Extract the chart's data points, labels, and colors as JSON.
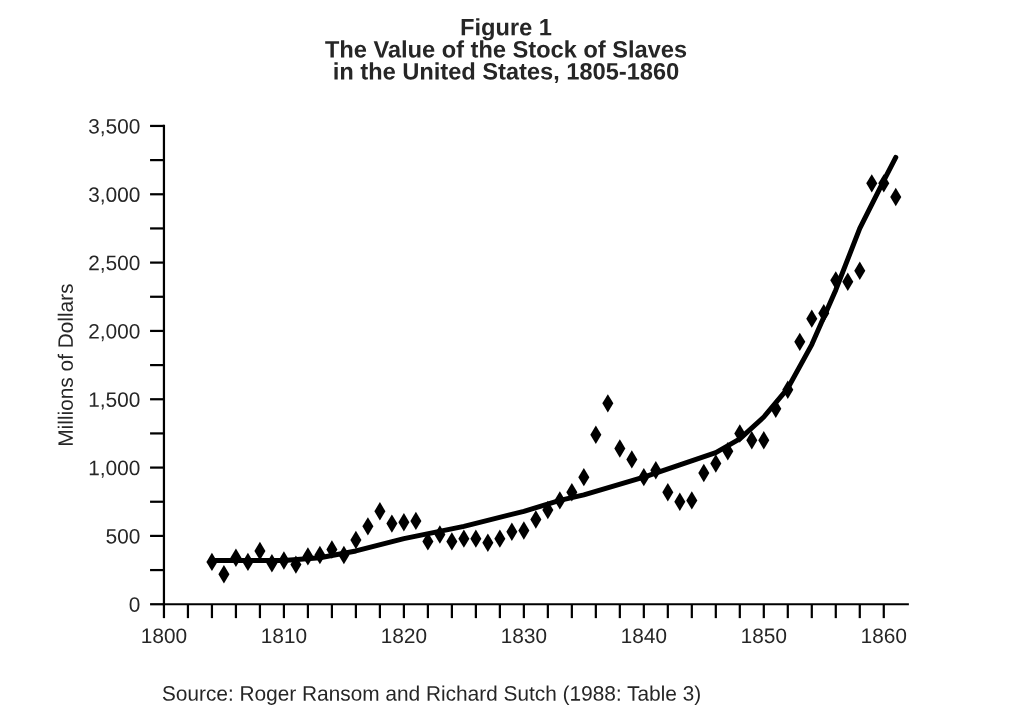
{
  "chart_data": {
    "type": "scatter",
    "title": "Figure 1\nThe Value of the Stock of Slaves\nin the United States, 1805-1860",
    "ylabel": "Millions of Dollars",
    "annotations": [
      "Source: Roger Ransom and Richard Sutch (1988: Table 3)"
    ],
    "series": [
      {
        "color": "#000000",
        "marker": "diamond",
        "x": [
          1804,
          1805,
          1806,
          1807,
          1808,
          1809,
          1810,
          1811,
          1812,
          1813,
          1814,
          1815,
          1816,
          1817,
          1818,
          1819,
          1820,
          1821,
          1822,
          1823,
          1824,
          1825,
          1826,
          1827,
          1828,
          1829,
          1830,
          1831,
          1832,
          1833,
          1834,
          1835,
          1836,
          1837,
          1838,
          1839,
          1840,
          1841,
          1842,
          1843,
          1844,
          1845,
          1846,
          1847,
          1848,
          1849,
          1850,
          1851,
          1852,
          1853,
          1854,
          1855,
          1856,
          1857,
          1858,
          1859,
          1860,
          1861
        ],
        "values": [
          310,
          220,
          340,
          310,
          390,
          300,
          320,
          290,
          350,
          360,
          400,
          360,
          470,
          570,
          680,
          590,
          600,
          610,
          460,
          510,
          460,
          480,
          480,
          450,
          480,
          530,
          540,
          620,
          690,
          760,
          820,
          930,
          1240,
          1470,
          1140,
          1060,
          930,
          980,
          820,
          750,
          760,
          960,
          1030,
          1120,
          1250,
          1200,
          1200,
          1430,
          1570,
          1920,
          2090,
          2130,
          2370,
          2360,
          2440,
          3080,
          3080,
          2980
        ]
      },
      {
        "type": "line",
        "color": "#000000",
        "marker": "none",
        "line_style": "solid",
        "x": [
          1804,
          1807,
          1810,
          1813,
          1816,
          1820,
          1825,
          1830,
          1833,
          1835,
          1840,
          1843,
          1846,
          1848,
          1850,
          1852,
          1854,
          1856,
          1858,
          1860,
          1861
        ],
        "values": [
          320,
          320,
          320,
          340,
          390,
          480,
          570,
          680,
          760,
          800,
          930,
          1020,
          1110,
          1210,
          1370,
          1580,
          1900,
          2300,
          2750,
          3100,
          3270
        ]
      }
    ],
    "xlim": [
      1800,
      1862
    ],
    "ylim": [
      0,
      3500
    ],
    "xticks": [
      1800,
      {
        "value": 1802,
        "label": null
      },
      {
        "value": 1804,
        "label": null
      },
      {
        "value": 1806,
        "label": null
      },
      {
        "value": 1808,
        "label": null
      },
      1810,
      {
        "value": 1812,
        "label": null
      },
      {
        "value": 1814,
        "label": null
      },
      {
        "value": 1816,
        "label": null
      },
      {
        "value": 1818,
        "label": null
      },
      1820,
      {
        "value": 1822,
        "label": null
      },
      {
        "value": 1824,
        "label": null
      },
      {
        "value": 1826,
        "label": null
      },
      {
        "value": 1828,
        "label": null
      },
      1830,
      {
        "value": 1832,
        "label": null
      },
      {
        "value": 1834,
        "label": null
      },
      {
        "value": 1836,
        "label": null
      },
      {
        "value": 1838,
        "label": null
      },
      1840,
      {
        "value": 1842,
        "label": null
      },
      {
        "value": 1844,
        "label": null
      },
      {
        "value": 1846,
        "label": null
      },
      {
        "value": 1848,
        "label": null
      },
      1850,
      {
        "value": 1852,
        "label": null
      },
      {
        "value": 1854,
        "label": null
      },
      {
        "value": 1856,
        "label": null
      },
      {
        "value": 1858,
        "label": null
      },
      1860
    ],
    "yticks": [
      0,
      {
        "value": 250,
        "label": null
      },
      500,
      {
        "value": 750,
        "label": null
      },
      {
        "value": 1000,
        "label": "1,000"
      },
      {
        "value": 1250,
        "label": null
      },
      {
        "value": 1500,
        "label": "1,500"
      },
      {
        "value": 1750,
        "label": null
      },
      {
        "value": 2000,
        "label": "2,000"
      },
      {
        "value": 2250,
        "label": null
      },
      {
        "value": 2500,
        "label": "2,500"
      },
      {
        "value": 2750,
        "label": null
      },
      {
        "value": 3000,
        "label": "3,000"
      },
      {
        "value": 3250,
        "label": null
      },
      {
        "value": 3500,
        "label": "3,500"
      }
    ],
    "grid": false,
    "legend": false
  }
}
